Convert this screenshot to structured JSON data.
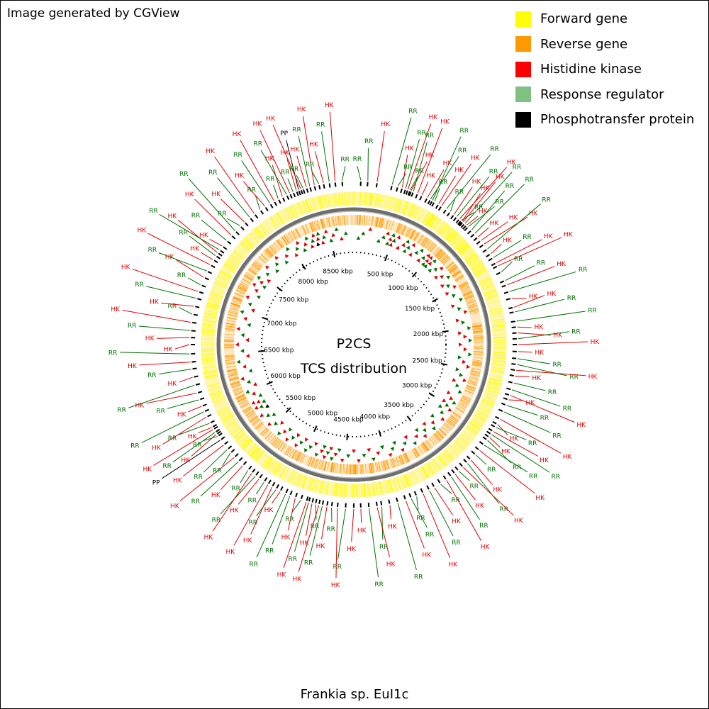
{
  "credit": "Image generated by CGView",
  "center_title": "P2CS",
  "center_subtitle": "TCS distribution",
  "caption": "Frankia sp. EuI1c",
  "legend": [
    {
      "label": "Forward gene",
      "color": "#ffff00"
    },
    {
      "label": "Reverse gene",
      "color": "#ff9900"
    },
    {
      "label": "Histidine kinase",
      "color": "#ff0000"
    },
    {
      "label": "Response regulator",
      "color": "#80c080"
    },
    {
      "label": "Phosphotransfer protein",
      "color": "#000000"
    }
  ],
  "label_colors": {
    "HK": "#e00000",
    "RR": "#007000",
    "PP": "#000000"
  },
  "genome_length_kbp": 8800,
  "ruler_ticks": [
    {
      "kbp": 500,
      "label": "500 kbp"
    },
    {
      "kbp": 1000,
      "label": "1000 kbp"
    },
    {
      "kbp": 1500,
      "label": "1500 kbp"
    },
    {
      "kbp": 2000,
      "label": "2000 kbp"
    },
    {
      "kbp": 2500,
      "label": "2500 kbp"
    },
    {
      "kbp": 3000,
      "label": "3000 kbp"
    },
    {
      "kbp": 3500,
      "label": "3500 kbp"
    },
    {
      "kbp": 4000,
      "label": "4000 kbp"
    },
    {
      "kbp": 4500,
      "label": "4500 kbp"
    },
    {
      "kbp": 5000,
      "label": "5000 kbp"
    },
    {
      "kbp": 5500,
      "label": "5500 kbp"
    },
    {
      "kbp": 6000,
      "label": "6000 kbp"
    },
    {
      "kbp": 6500,
      "label": "6500 kbp"
    },
    {
      "kbp": 7000,
      "label": "7000 kbp"
    },
    {
      "kbp": 7500,
      "label": "7500 kbp"
    },
    {
      "kbp": 8000,
      "label": "8000 kbp"
    },
    {
      "kbp": 8500,
      "label": "8500 kbp"
    }
  ],
  "features": [
    {
      "type": "RR",
      "kbp": 60
    },
    {
      "type": "RR",
      "kbp": 120
    },
    {
      "type": "HK",
      "kbp": 200
    },
    {
      "type": "RR",
      "kbp": 330
    },
    {
      "type": "RR",
      "kbp": 380
    },
    {
      "type": "HK",
      "kbp": 420
    },
    {
      "type": "RR",
      "kbp": 450
    },
    {
      "type": "HK",
      "kbp": 470
    },
    {
      "type": "RR",
      "kbp": 490
    },
    {
      "type": "HK",
      "kbp": 500
    },
    {
      "type": "RR",
      "kbp": 520
    },
    {
      "type": "HK",
      "kbp": 560
    },
    {
      "type": "HK",
      "kbp": 600
    },
    {
      "type": "HK",
      "kbp": 650
    },
    {
      "type": "RR",
      "kbp": 680
    },
    {
      "type": "RR",
      "kbp": 700
    },
    {
      "type": "RR",
      "kbp": 720
    },
    {
      "type": "HK",
      "kbp": 760
    },
    {
      "type": "HK",
      "kbp": 790
    },
    {
      "type": "RR",
      "kbp": 840
    },
    {
      "type": "RR",
      "kbp": 880
    },
    {
      "type": "HK",
      "kbp": 920
    },
    {
      "type": "RR",
      "kbp": 950
    },
    {
      "type": "HK",
      "kbp": 980
    },
    {
      "type": "RR",
      "kbp": 1000
    },
    {
      "type": "HK",
      "kbp": 1010
    },
    {
      "type": "HK",
      "kbp": 1020
    },
    {
      "type": "RR",
      "kbp": 1040
    },
    {
      "type": "HK",
      "kbp": 1060
    },
    {
      "type": "RR",
      "kbp": 1080
    },
    {
      "type": "RR",
      "kbp": 1120
    },
    {
      "type": "RR",
      "kbp": 1160
    },
    {
      "type": "HK",
      "kbp": 1200
    },
    {
      "type": "HK",
      "kbp": 1240
    },
    {
      "type": "HK",
      "kbp": 1280
    },
    {
      "type": "RR",
      "kbp": 1330
    },
    {
      "type": "HK",
      "kbp": 1380
    },
    {
      "type": "RR",
      "kbp": 1420
    },
    {
      "type": "HK",
      "kbp": 1470
    },
    {
      "type": "HK",
      "kbp": 1500
    },
    {
      "type": "RR",
      "kbp": 1560
    },
    {
      "type": "RR",
      "kbp": 1640
    },
    {
      "type": "HK",
      "kbp": 1680
    },
    {
      "type": "RR",
      "kbp": 1740
    },
    {
      "type": "HK",
      "kbp": 1800
    },
    {
      "type": "HK",
      "kbp": 1880
    },
    {
      "type": "RR",
      "kbp": 1920
    },
    {
      "type": "RR",
      "kbp": 2000
    },
    {
      "type": "HK",
      "kbp": 2050
    },
    {
      "type": "HK",
      "kbp": 2100
    },
    {
      "type": "RR",
      "kbp": 2150
    },
    {
      "type": "HK",
      "kbp": 2200
    },
    {
      "type": "HK",
      "kbp": 2260
    },
    {
      "type": "RR",
      "kbp": 2320
    },
    {
      "type": "RR",
      "kbp": 2370
    },
    {
      "type": "HK",
      "kbp": 2420
    },
    {
      "type": "HK",
      "kbp": 2470
    },
    {
      "type": "RR",
      "kbp": 2530
    },
    {
      "type": "RR",
      "kbp": 2590
    },
    {
      "type": "HK",
      "kbp": 2640
    },
    {
      "type": "HK",
      "kbp": 2680
    },
    {
      "type": "RR",
      "kbp": 2730
    },
    {
      "type": "RR",
      "kbp": 2790
    },
    {
      "type": "HK",
      "kbp": 2860
    },
    {
      "type": "HK",
      "kbp": 2910
    },
    {
      "type": "RR",
      "kbp": 2940
    },
    {
      "type": "HK",
      "kbp": 2980
    },
    {
      "type": "RR",
      "kbp": 3010
    },
    {
      "type": "HK",
      "kbp": 3040
    },
    {
      "type": "RR",
      "kbp": 3070
    },
    {
      "type": "RR",
      "kbp": 3120
    },
    {
      "type": "HK",
      "kbp": 3180
    },
    {
      "type": "RR",
      "kbp": 3230
    },
    {
      "type": "HK",
      "kbp": 3290
    },
    {
      "type": "RR",
      "kbp": 3330
    },
    {
      "type": "HK",
      "kbp": 3380
    },
    {
      "type": "RR",
      "kbp": 3430
    },
    {
      "type": "HK",
      "kbp": 3470
    },
    {
      "type": "RR",
      "kbp": 3510
    },
    {
      "type": "HK",
      "kbp": 3560
    },
    {
      "type": "RR",
      "kbp": 3620
    },
    {
      "type": "HK",
      "kbp": 3680
    },
    {
      "type": "RR",
      "kbp": 3730
    },
    {
      "type": "HK",
      "kbp": 3790
    },
    {
      "type": "RR",
      "kbp": 3850
    },
    {
      "type": "RR",
      "kbp": 3900
    },
    {
      "type": "HK",
      "kbp": 3950
    },
    {
      "type": "RR",
      "kbp": 4020
    },
    {
      "type": "HK",
      "kbp": 4090
    },
    {
      "type": "RR",
      "kbp": 4160
    },
    {
      "type": "HK",
      "kbp": 4200
    },
    {
      "type": "RR",
      "kbp": 4270
    },
    {
      "type": "HK",
      "kbp": 4340
    },
    {
      "type": "HK",
      "kbp": 4400
    },
    {
      "type": "RR",
      "kbp": 4470
    },
    {
      "type": "HK",
      "kbp": 4540
    },
    {
      "type": "RR",
      "kbp": 4590
    },
    {
      "type": "HK",
      "kbp": 4630
    },
    {
      "type": "RR",
      "kbp": 4670
    },
    {
      "type": "HK",
      "kbp": 4700
    },
    {
      "type": "RR",
      "kbp": 4730
    },
    {
      "type": "HK",
      "kbp": 4760
    },
    {
      "type": "RR",
      "kbp": 4790
    },
    {
      "type": "HK",
      "kbp": 4810
    },
    {
      "type": "RR",
      "kbp": 4860
    },
    {
      "type": "HK",
      "kbp": 4910
    },
    {
      "type": "RR",
      "kbp": 4960
    },
    {
      "type": "RR",
      "kbp": 5000
    },
    {
      "type": "HK",
      "kbp": 5050
    },
    {
      "type": "RR",
      "kbp": 5090
    },
    {
      "type": "HK",
      "kbp": 5130
    },
    {
      "type": "HK",
      "kbp": 5170
    },
    {
      "type": "RR",
      "kbp": 5210
    },
    {
      "type": "HK",
      "kbp": 5260
    },
    {
      "type": "RR",
      "kbp": 5300
    },
    {
      "type": "HK",
      "kbp": 5340
    },
    {
      "type": "RR",
      "kbp": 5380
    },
    {
      "type": "HK",
      "kbp": 5440
    },
    {
      "type": "RR",
      "kbp": 5490
    },
    {
      "type": "HK",
      "kbp": 5540
    },
    {
      "type": "RR",
      "kbp": 5590
    },
    {
      "type": "RR",
      "kbp": 5630
    },
    {
      "type": "HK",
      "kbp": 5680
    },
    {
      "type": "PP",
      "kbp": 5730
    },
    {
      "type": "RR",
      "kbp": 5770
    },
    {
      "type": "HK",
      "kbp": 5790
    },
    {
      "type": "RR",
      "kbp": 5810
    },
    {
      "type": "HK",
      "kbp": 5840
    },
    {
      "type": "HK",
      "kbp": 5860
    },
    {
      "type": "RR",
      "kbp": 5900
    },
    {
      "type": "HK",
      "kbp": 5960
    },
    {
      "type": "RR",
      "kbp": 6010
    },
    {
      "type": "HK",
      "kbp": 6060
    },
    {
      "type": "RR",
      "kbp": 6120
    },
    {
      "type": "HK",
      "kbp": 6180
    },
    {
      "type": "RR",
      "kbp": 6250
    },
    {
      "type": "HK",
      "kbp": 6320
    },
    {
      "type": "RR",
      "kbp": 6390
    },
    {
      "type": "HK",
      "kbp": 6450
    },
    {
      "type": "RR",
      "kbp": 6520
    },
    {
      "type": "HK",
      "kbp": 6600
    },
    {
      "type": "HK",
      "kbp": 6660
    },
    {
      "type": "RR",
      "kbp": 6720
    },
    {
      "type": "HK",
      "kbp": 6790
    },
    {
      "type": "RR",
      "kbp": 6860
    },
    {
      "type": "HK",
      "kbp": 6930
    },
    {
      "type": "RR",
      "kbp": 7000
    },
    {
      "type": "HK",
      "kbp": 7060
    },
    {
      "type": "RR",
      "kbp": 7120
    },
    {
      "type": "HK",
      "kbp": 7190
    },
    {
      "type": "RR",
      "kbp": 7250
    },
    {
      "type": "HK",
      "kbp": 7310
    },
    {
      "type": "HK",
      "kbp": 7360
    },
    {
      "type": "RR",
      "kbp": 7400
    },
    {
      "type": "HK",
      "kbp": 7430
    },
    {
      "type": "RR",
      "kbp": 7460
    },
    {
      "type": "HK",
      "kbp": 7500
    },
    {
      "type": "RR",
      "kbp": 7560
    },
    {
      "type": "HK",
      "kbp": 7620
    },
    {
      "type": "RR",
      "kbp": 7670
    },
    {
      "type": "RR",
      "kbp": 7730
    },
    {
      "type": "HK",
      "kbp": 7780
    },
    {
      "type": "RR",
      "kbp": 7840
    },
    {
      "type": "HK",
      "kbp": 7890
    },
    {
      "type": "RR",
      "kbp": 7950
    },
    {
      "type": "HK",
      "kbp": 8000
    },
    {
      "type": "RR",
      "kbp": 8050
    },
    {
      "type": "HK",
      "kbp": 8090
    },
    {
      "type": "RR",
      "kbp": 8130
    },
    {
      "type": "HK",
      "kbp": 8170
    },
    {
      "type": "RR",
      "kbp": 8210
    },
    {
      "type": "HK",
      "kbp": 8240
    },
    {
      "type": "RR",
      "kbp": 8270
    },
    {
      "type": "HK",
      "kbp": 8300
    },
    {
      "type": "PP",
      "kbp": 8320
    },
    {
      "type": "HK",
      "kbp": 8340
    },
    {
      "type": "RR",
      "kbp": 8360
    },
    {
      "type": "HK",
      "kbp": 8390
    },
    {
      "type": "RR",
      "kbp": 8420
    },
    {
      "type": "HK",
      "kbp": 8460
    },
    {
      "type": "RR",
      "kbp": 8500
    },
    {
      "type": "HK",
      "kbp": 8540
    },
    {
      "type": "RR",
      "kbp": 8590
    },
    {
      "type": "HK",
      "kbp": 8640
    },
    {
      "type": "RR",
      "kbp": 8700
    }
  ]
}
